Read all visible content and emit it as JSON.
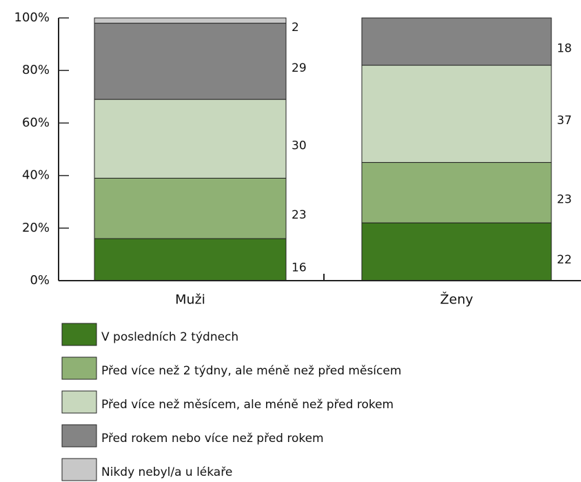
{
  "chart_data": {
    "type": "stacked_bar",
    "categories": [
      "Muži",
      "Ženy"
    ],
    "series": [
      {
        "name": "V posledních 2 týdnech",
        "color": "#3f7a1f",
        "values": [
          16,
          22
        ]
      },
      {
        "name": "Před více než 2 týdny, ale méně než před měsícem",
        "color": "#8fb174",
        "values": [
          23,
          23
        ]
      },
      {
        "name": "Před více než měsícem, ale méně než před rokem",
        "color": "#c8d8bd",
        "values": [
          30,
          37
        ]
      },
      {
        "name": "Před rokem nebo více než před rokem",
        "color": "#848484",
        "values": [
          29,
          18
        ]
      },
      {
        "name": "Nikdy nebyl/a u lékaře",
        "color": "#c8c8c8",
        "values": [
          2,
          0
        ]
      }
    ],
    "ylim": [
      0,
      100
    ],
    "yticks": [
      {
        "value": 0,
        "label": "0%"
      },
      {
        "value": 20,
        "label": "20%"
      },
      {
        "value": 40,
        "label": "40%"
      },
      {
        "value": 60,
        "label": "60%"
      },
      {
        "value": 80,
        "label": "80%"
      },
      {
        "value": 100,
        "label": "100%"
      }
    ]
  }
}
